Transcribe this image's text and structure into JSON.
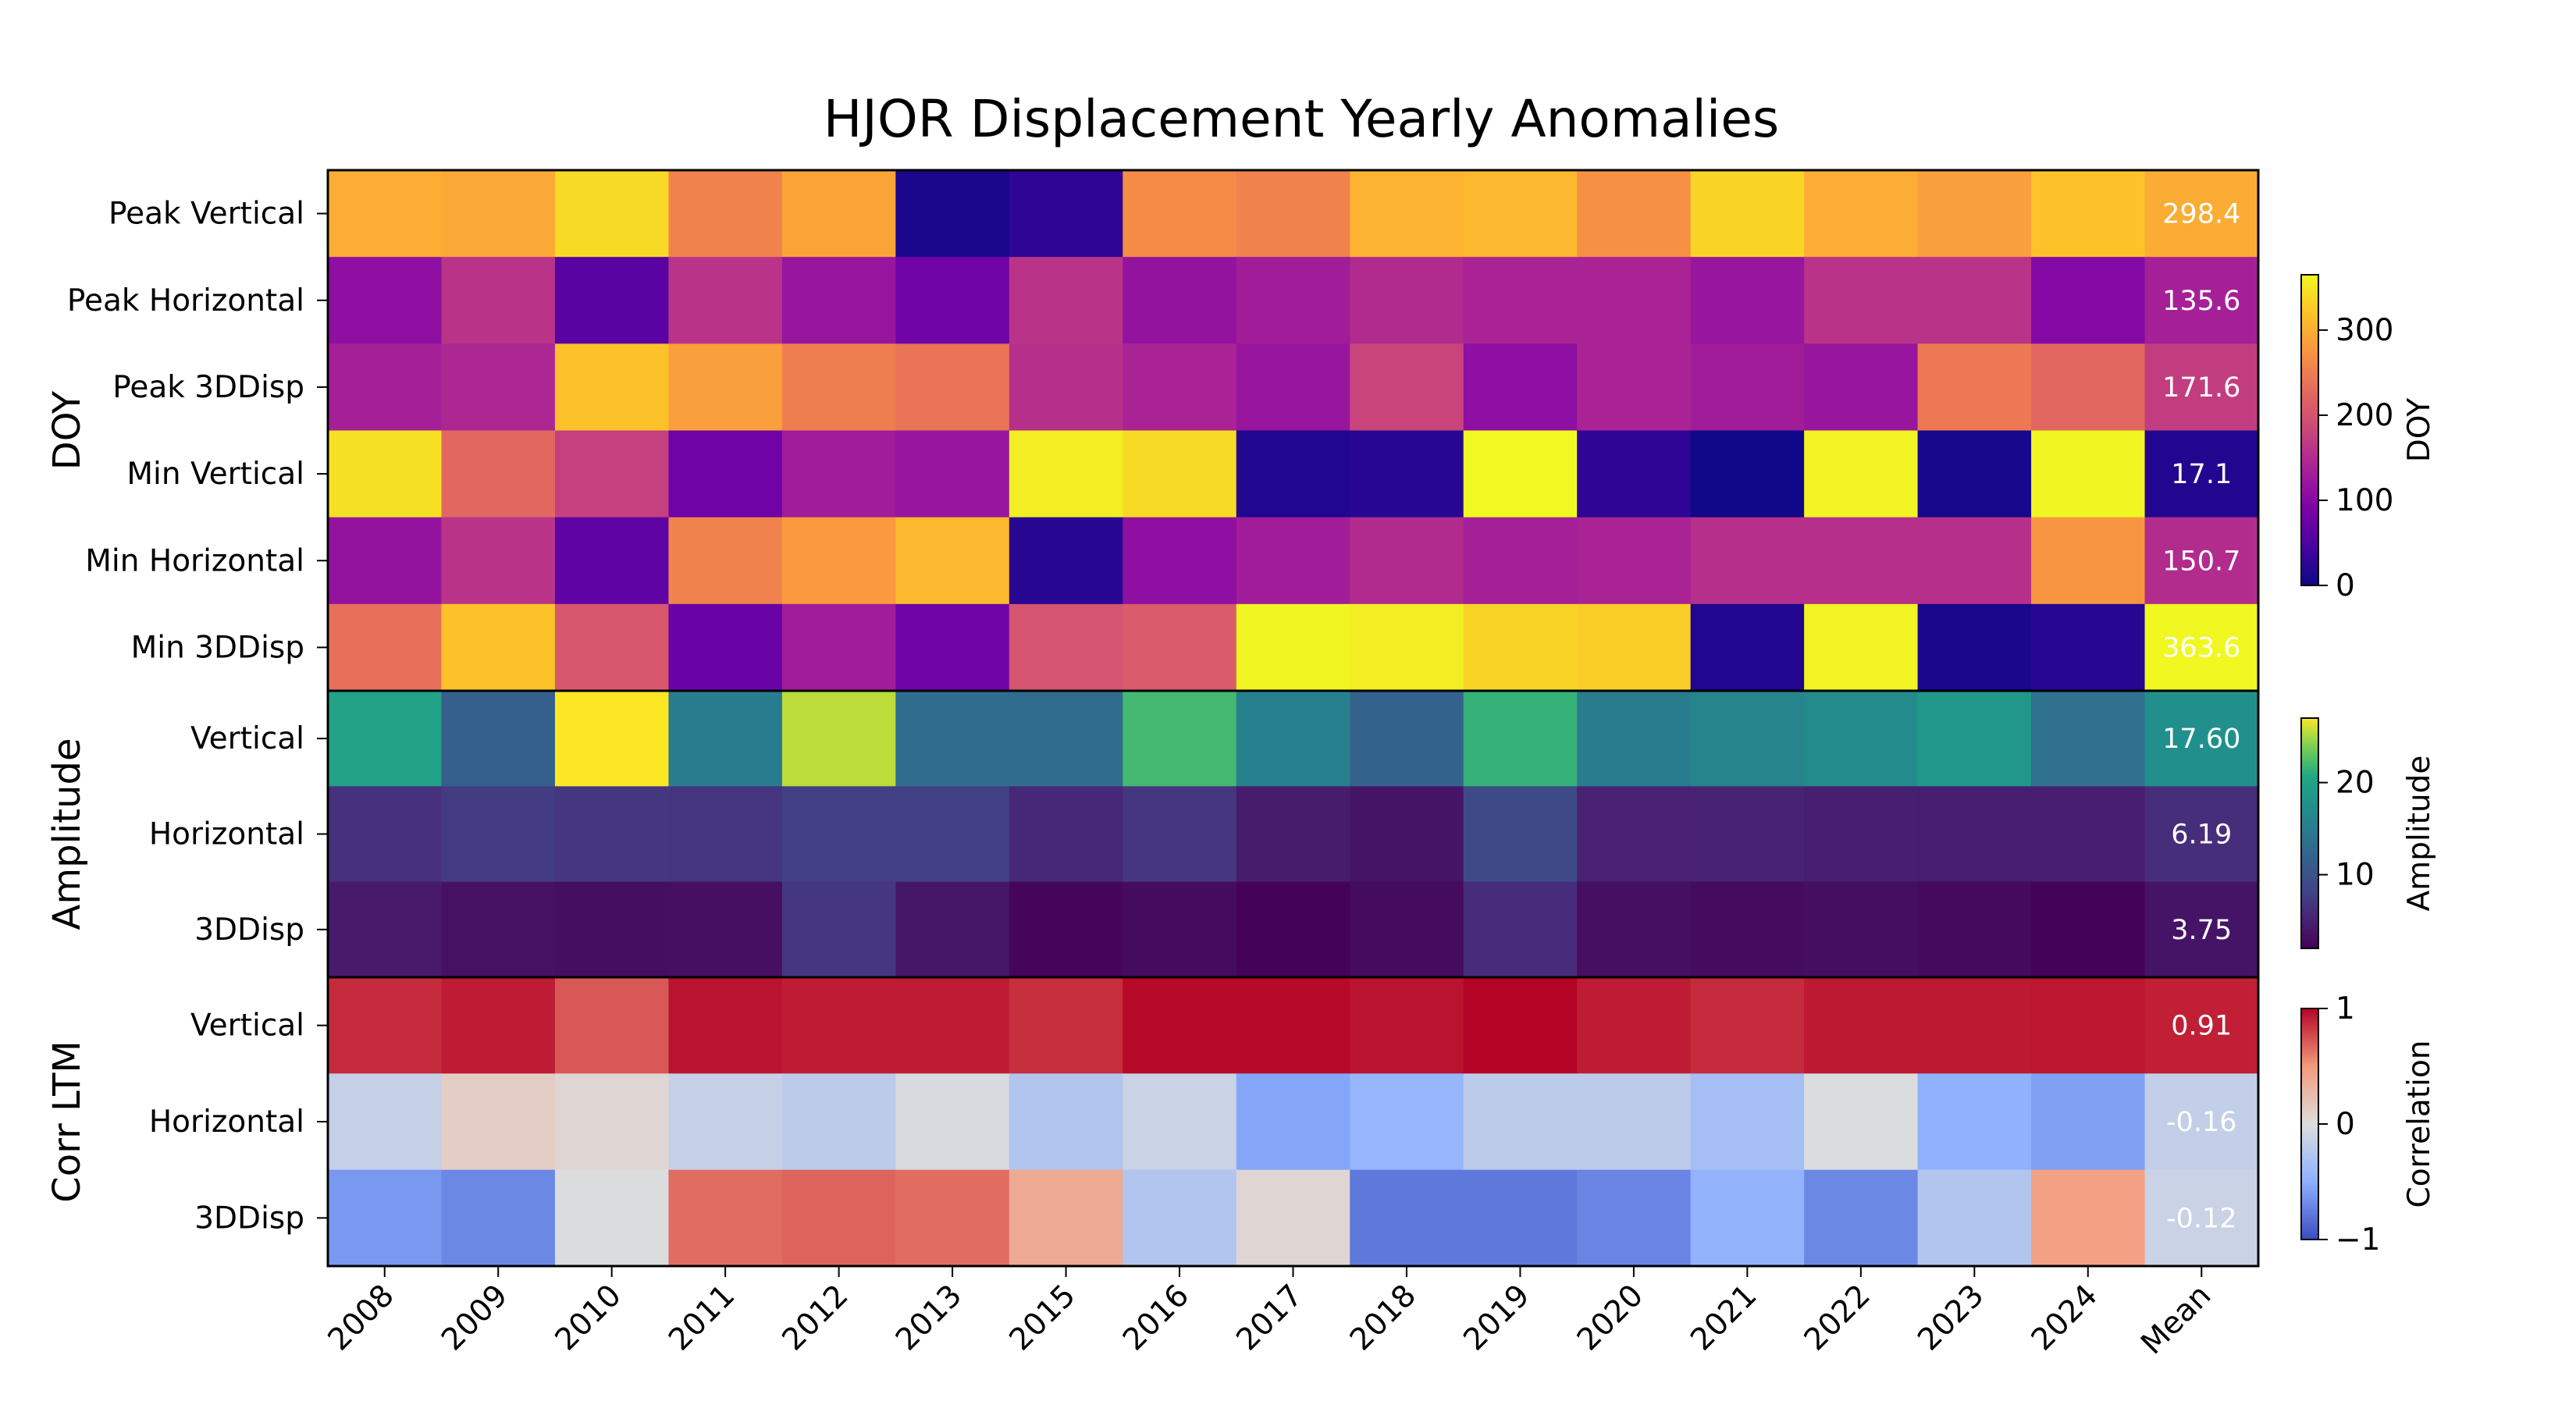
{
  "chart_data": {
    "type": "heatmap",
    "title": "HJOR Displacement Yearly Anomalies",
    "columns": [
      "2008",
      "2009",
      "2010",
      "2011",
      "2012",
      "2013",
      "2015",
      "2016",
      "2017",
      "2018",
      "2019",
      "2020",
      "2021",
      "2022",
      "2023",
      "2024",
      "Mean"
    ],
    "panels": [
      {
        "group_label": "DOY",
        "colormap": "plasma",
        "vmin": 0,
        "vmax": 365,
        "colorbar_label": "DOY",
        "colorbar_ticks": [
          0,
          100,
          200,
          300
        ],
        "colorbar_tick_labels": [
          "0",
          "100",
          "200",
          "300"
        ],
        "rows": [
          {
            "label": "Peak Vertical",
            "values": [
              300,
              295,
              340,
              255,
              290,
              10,
              25,
              265,
              255,
              305,
              310,
              270,
              335,
              300,
              285,
              320,
              298.4
            ],
            "mean_label": "298.4"
          },
          {
            "label": "Peak Horizontal",
            "values": [
              110,
              160,
              60,
              160,
              120,
              80,
              160,
              115,
              130,
              150,
              140,
              140,
              120,
              160,
              160,
              100,
              135.6
            ],
            "mean_label": "135.6"
          },
          {
            "label": "Peak 3DDisp",
            "values": [
              135,
              145,
              320,
              285,
              250,
              240,
              155,
              140,
              120,
              180,
              110,
              140,
              130,
              120,
              245,
              225,
              171.6
            ],
            "mean_label": "171.6"
          },
          {
            "label": "Min Vertical",
            "values": [
              345,
              225,
              175,
              80,
              130,
              120,
              355,
              340,
              15,
              20,
              365,
              25,
              2,
              360,
              8,
              362,
              17.1
            ],
            "mean_label": "17.1"
          },
          {
            "label": "Min Horizontal",
            "values": [
              115,
              160,
              65,
              255,
              280,
              310,
              20,
              110,
              130,
              150,
              135,
              140,
              155,
              155,
              155,
              275,
              150.7
            ],
            "mean_label": "150.7"
          },
          {
            "label": "Min 3DDisp",
            "values": [
              235,
              320,
              205,
              75,
              130,
              80,
              200,
              210,
              362,
              355,
              335,
              330,
              15,
              360,
              10,
              20,
              363.6
            ],
            "mean_label": "363.6"
          }
        ]
      },
      {
        "group_label": "Amplitude",
        "colormap": "viridis",
        "vmin": 2,
        "vmax": 27,
        "colorbar_label": "Amplitude",
        "colorbar_ticks": [
          10,
          20
        ],
        "colorbar_tick_labels": [
          "10",
          "20"
        ],
        "rows": [
          {
            "label": "Vertical",
            "values": [
              20,
              11.5,
              27,
              15,
              25.5,
              13,
              13,
              22,
              15.5,
              12,
              21.5,
              15,
              16,
              17,
              18.5,
              13.5,
              17.6
            ],
            "mean_label": "17.60"
          },
          {
            "label": "Horizontal",
            "values": [
              6.5,
              7.5,
              7,
              6.8,
              7.8,
              8,
              5.5,
              7,
              4.5,
              3.8,
              9,
              5,
              5.2,
              4.8,
              4.7,
              4.7,
              6.19
            ],
            "mean_label": "6.19"
          },
          {
            "label": "3DDisp",
            "values": [
              4.3,
              3.5,
              3.2,
              3.3,
              7,
              4,
              2.5,
              3,
              2.2,
              3,
              6,
              3.3,
              3,
              3.2,
              2.8,
              2.2,
              3.75
            ],
            "mean_label": "3.75"
          }
        ]
      },
      {
        "group_label": "Corr LTM",
        "colormap": "coolwarm",
        "vmin": -1,
        "vmax": 1,
        "colorbar_label": "Correlation",
        "colorbar_ticks": [
          -1,
          0,
          1
        ],
        "colorbar_tick_labels": [
          "−1",
          "0",
          "1"
        ],
        "rows": [
          {
            "label": "Vertical",
            "values": [
              0.87,
              0.92,
              0.72,
              0.95,
              0.92,
              0.92,
              0.86,
              0.98,
              0.98,
              0.95,
              1.0,
              0.92,
              0.87,
              0.93,
              0.93,
              0.94,
              0.91
            ],
            "mean_label": "0.91"
          },
          {
            "label": "Horizontal",
            "values": [
              -0.15,
              0.12,
              0.05,
              -0.15,
              -0.2,
              -0.03,
              -0.27,
              -0.12,
              -0.55,
              -0.44,
              -0.2,
              -0.2,
              -0.35,
              -0.01,
              -0.48,
              -0.58,
              -0.16
            ],
            "mean_label": "-0.16"
          },
          {
            "label": "3DDisp",
            "values": [
              -0.62,
              -0.7,
              -0.01,
              0.65,
              0.68,
              0.65,
              0.38,
              -0.27,
              0.05,
              -0.78,
              -0.78,
              -0.72,
              -0.47,
              -0.7,
              -0.27,
              0.45,
              -0.12
            ],
            "mean_label": "-0.12"
          }
        ]
      }
    ],
    "grid": false
  }
}
